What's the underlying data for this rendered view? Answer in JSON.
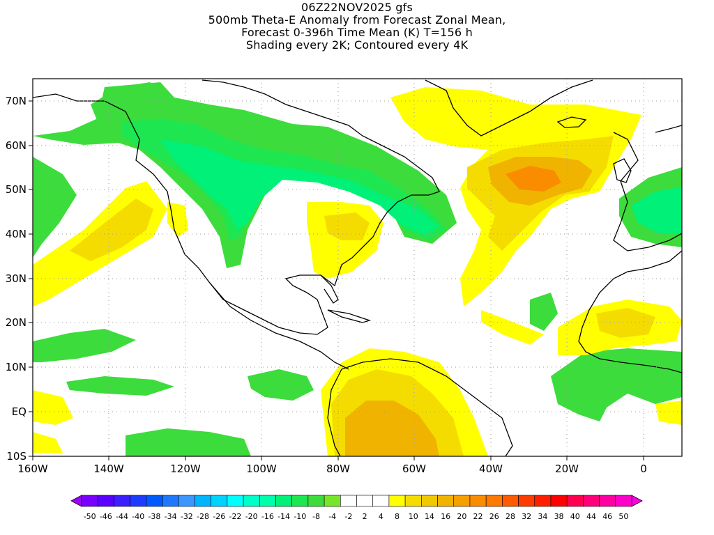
{
  "title": {
    "line1": "06Z22NOV2025 gfs",
    "line2": "500mb Theta-E Anomaly from Forecast Zonal Mean,",
    "line3": "Forecast 0-396h Time Mean (K) T=156 h",
    "line4": "Shading every 2K; Contoured every 4K"
  },
  "map": {
    "lat_labels": [
      "70N",
      "60N",
      "50N",
      "40N",
      "30N",
      "20N",
      "10N",
      "EQ",
      "10S"
    ],
    "lon_labels": [
      "160W",
      "140W",
      "120W",
      "100W",
      "80W",
      "60W",
      "40W",
      "20W",
      "0"
    ],
    "lon_range": [
      -160,
      10
    ],
    "lat_range": [
      -10,
      75
    ],
    "grid": "dotted"
  },
  "colorbar": {
    "labels": [
      "-50",
      "-46",
      "-44",
      "-40",
      "-38",
      "-34",
      "-32",
      "-28",
      "-26",
      "-22",
      "-20",
      "-16",
      "-14",
      "-10",
      "-8",
      "-4",
      "-2",
      "2",
      "4",
      "8",
      "10",
      "14",
      "16",
      "20",
      "22",
      "26",
      "28",
      "32",
      "34",
      "38",
      "40",
      "44",
      "46",
      "50"
    ],
    "colors": [
      "#a000ff",
      "#7800ff",
      "#5a00ff",
      "#3c1eff",
      "#1e3cff",
      "#005aff",
      "#1e78ff",
      "#3c96ff",
      "#00b4ff",
      "#00d2ff",
      "#00ffff",
      "#00ffc8",
      "#00ffaa",
      "#00f078",
      "#1ee650",
      "#3cdc3c",
      "#78e628",
      "#ffffff",
      "#ffffff",
      "#ffffff",
      "#ffff00",
      "#f5dc00",
      "#f0c800",
      "#f0b400",
      "#f5a000",
      "#fa8c00",
      "#ff7800",
      "#ff5a00",
      "#ff3c00",
      "#ff1e00",
      "#ff0000",
      "#ff0050",
      "#ff0078",
      "#ff00a0",
      "#ff00c8",
      "#ff00e6"
    ]
  }
}
